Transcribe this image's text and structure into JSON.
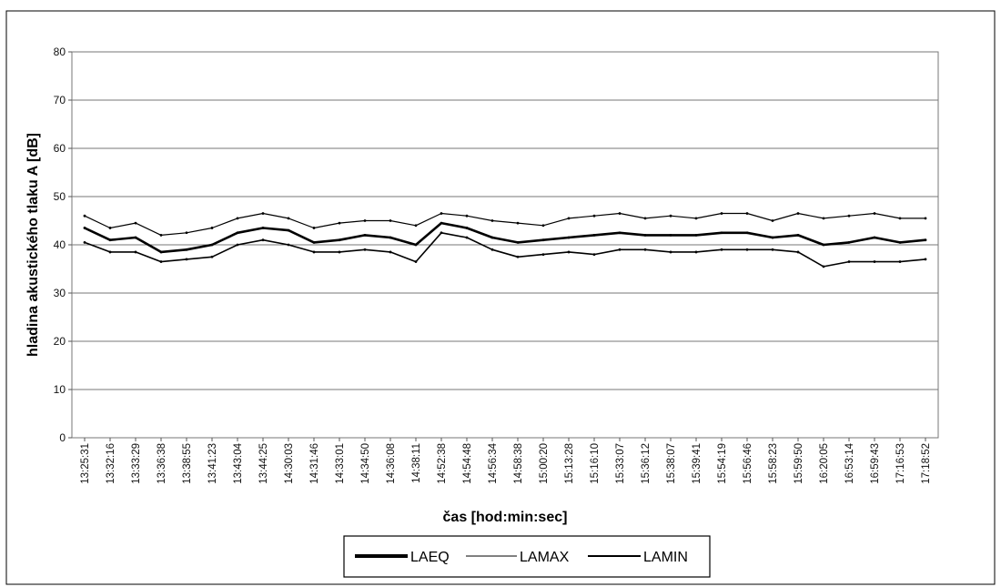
{
  "chart_data": {
    "type": "line",
    "xlabel": "čas [hod:min:sec]",
    "ylabel": "hladina akustického tlaku A [dB]",
    "ylim": [
      0,
      80
    ],
    "yticks": [
      "0",
      "10",
      "20",
      "30",
      "40",
      "50",
      "60",
      "70",
      "80"
    ],
    "grid": "horizontal",
    "legend_position": "bottom",
    "categories": [
      "13:25:31",
      "13:32:16",
      "13:33:29",
      "13:36:38",
      "13:38:55",
      "13:41:23",
      "13:43:04",
      "13:44:25",
      "14:30:03",
      "14:31:46",
      "14:33:01",
      "14:34:50",
      "14:36:08",
      "14:38:11",
      "14:52:38",
      "14:54:48",
      "14:56:34",
      "14:58:38",
      "15:00:20",
      "15:13:28",
      "15:16:10",
      "15:33:07",
      "15:36:12",
      "15:38:07",
      "15:39:41",
      "15:54:19",
      "15:56:46",
      "15:58:23",
      "15:59:50",
      "16:20:05",
      "16:53:14",
      "16:59:43",
      "17:16:53",
      "17:18:52"
    ],
    "series": [
      {
        "name": "LAEQ",
        "color": "#000000",
        "values": [
          43.5,
          41.0,
          41.5,
          38.5,
          39.0,
          40.0,
          42.5,
          43.5,
          43.0,
          40.5,
          41.0,
          42.0,
          41.5,
          40.0,
          44.5,
          43.5,
          41.5,
          40.5,
          41.0,
          41.5,
          42.0,
          42.5,
          42.0,
          42.0,
          42.0,
          42.5,
          42.5,
          41.5,
          42.0,
          40.0,
          40.5,
          41.5,
          40.5,
          41.0
        ]
      },
      {
        "name": "LAMAX",
        "color": "#000000",
        "values": [
          46.0,
          43.5,
          44.5,
          42.0,
          42.5,
          43.5,
          45.5,
          46.5,
          45.5,
          43.5,
          44.5,
          45.0,
          45.0,
          44.0,
          46.5,
          46.0,
          45.0,
          44.5,
          44.0,
          45.5,
          46.0,
          46.5,
          45.5,
          46.0,
          45.5,
          46.5,
          46.5,
          45.0,
          46.5,
          45.5,
          46.0,
          46.5,
          45.5,
          45.5
        ]
      },
      {
        "name": "LAMIN",
        "color": "#000000",
        "values": [
          40.5,
          38.5,
          38.5,
          36.5,
          37.0,
          37.5,
          40.0,
          41.0,
          40.0,
          38.5,
          38.5,
          39.0,
          38.5,
          36.5,
          42.5,
          41.5,
          39.0,
          37.5,
          38.0,
          38.5,
          38.0,
          39.0,
          39.0,
          38.5,
          38.5,
          39.0,
          39.0,
          39.0,
          38.5,
          35.5,
          36.5,
          36.5,
          36.5,
          37.0
        ]
      }
    ]
  }
}
